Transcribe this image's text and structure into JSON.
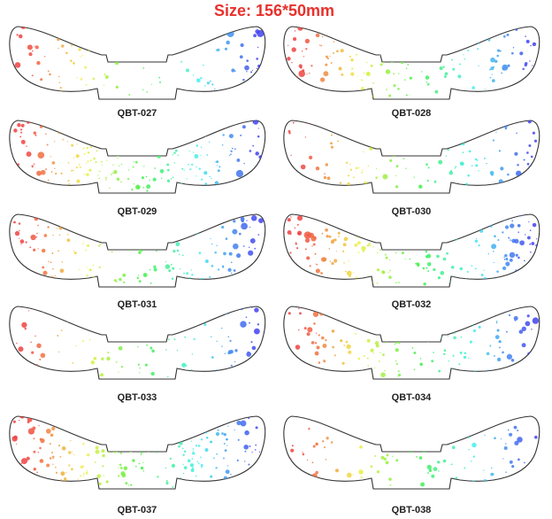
{
  "header": {
    "title": "Size: 156*50mm"
  },
  "items": [
    {
      "label": "QBT-027"
    },
    {
      "label": "QBT-028"
    },
    {
      "label": "QBT-029"
    },
    {
      "label": "QBT-030"
    },
    {
      "label": "QBT-031"
    },
    {
      "label": "QBT-032"
    },
    {
      "label": "QBT-033"
    },
    {
      "label": "QBT-034"
    },
    {
      "label": "QBT-037"
    },
    {
      "label": "QBT-038"
    }
  ]
}
